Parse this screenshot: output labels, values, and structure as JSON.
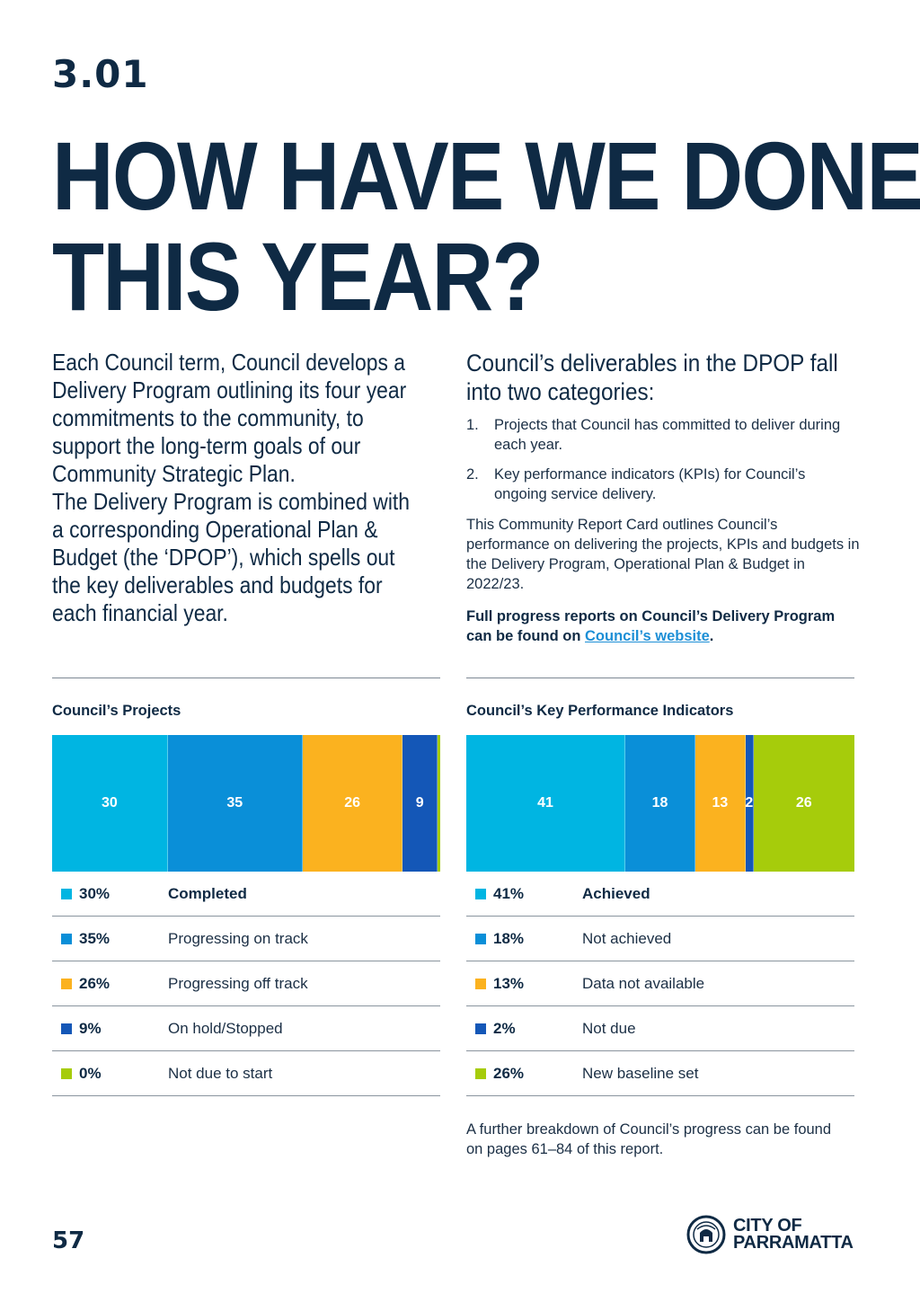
{
  "section_number": "3.01",
  "heading": {
    "line1": "HOW HAVE WE DONE",
    "line2": "THIS YEAR?"
  },
  "intro": {
    "p1": "Each Council term, Council develops a Delivery Program outlining its four year commitments to the community, to support the long-term goals of our Community Strategic Plan.",
    "p2": "The Delivery Program is combined with a corresponding Operational Plan & Budget (the ‘DPOP’), which spells out the key deliverables and budgets for each financial year."
  },
  "right": {
    "heading": "Council’s deliverables in the DPOP fall into two categories:",
    "items": [
      {
        "num": "1.",
        "text": "Projects that Council has committed to deliver during each year."
      },
      {
        "num": "2.",
        "text": "Key performance indicators (KPIs) for Council’s ongoing service delivery."
      }
    ],
    "para": "This Community Report Card outlines Council’s performance on delivering the projects, KPIs and budgets in the Delivery Program, Operational Plan & Budget in 2022/23.",
    "bold_text": "Full progress reports on Council’s Delivery Program can be found on ",
    "link_text": "Council’s website",
    "bold_end": "."
  },
  "colors": {
    "cyan": "#00b5e2",
    "blue": "#0a8fd8",
    "orange": "#fbb21f",
    "navy": "#1457b7",
    "lime": "#a6cc0b"
  },
  "chart_data": [
    {
      "type": "bar",
      "subtype": "stacked-100",
      "title": "Council’s Projects",
      "categories": [
        "Completed",
        "Progressing on track",
        "Progressing off track",
        "On hold/Stopped",
        "Not due to start"
      ],
      "values": [
        30,
        35,
        26,
        9,
        0
      ],
      "data_labels": [
        "30",
        "35",
        "26",
        "9",
        ""
      ],
      "legend_pct": [
        "30%",
        "35%",
        "26%",
        "9%",
        "0%"
      ],
      "colors": [
        "#00b5e2",
        "#0a8fd8",
        "#fbb21f",
        "#1457b7",
        "#a6cc0b"
      ]
    },
    {
      "type": "bar",
      "subtype": "stacked-100",
      "title": "Council’s Key Performance Indicators",
      "categories": [
        "Achieved",
        "Not achieved",
        "Data not available",
        "Not due",
        "New baseline set"
      ],
      "values": [
        41,
        18,
        13,
        2,
        26
      ],
      "data_labels": [
        "41",
        "18",
        "13",
        "2",
        "26"
      ],
      "legend_pct": [
        "41%",
        "18%",
        "13%",
        "2%",
        "26%"
      ],
      "colors": [
        "#00b5e2",
        "#0a8fd8",
        "#fbb21f",
        "#1457b7",
        "#a6cc0b"
      ]
    }
  ],
  "footer_note": "A further breakdown of Council’s progress can be found on pages 61–84 of this report.",
  "page_number": "57",
  "logo": {
    "line1": "CITY OF",
    "line2": "PARRAMATTA"
  }
}
